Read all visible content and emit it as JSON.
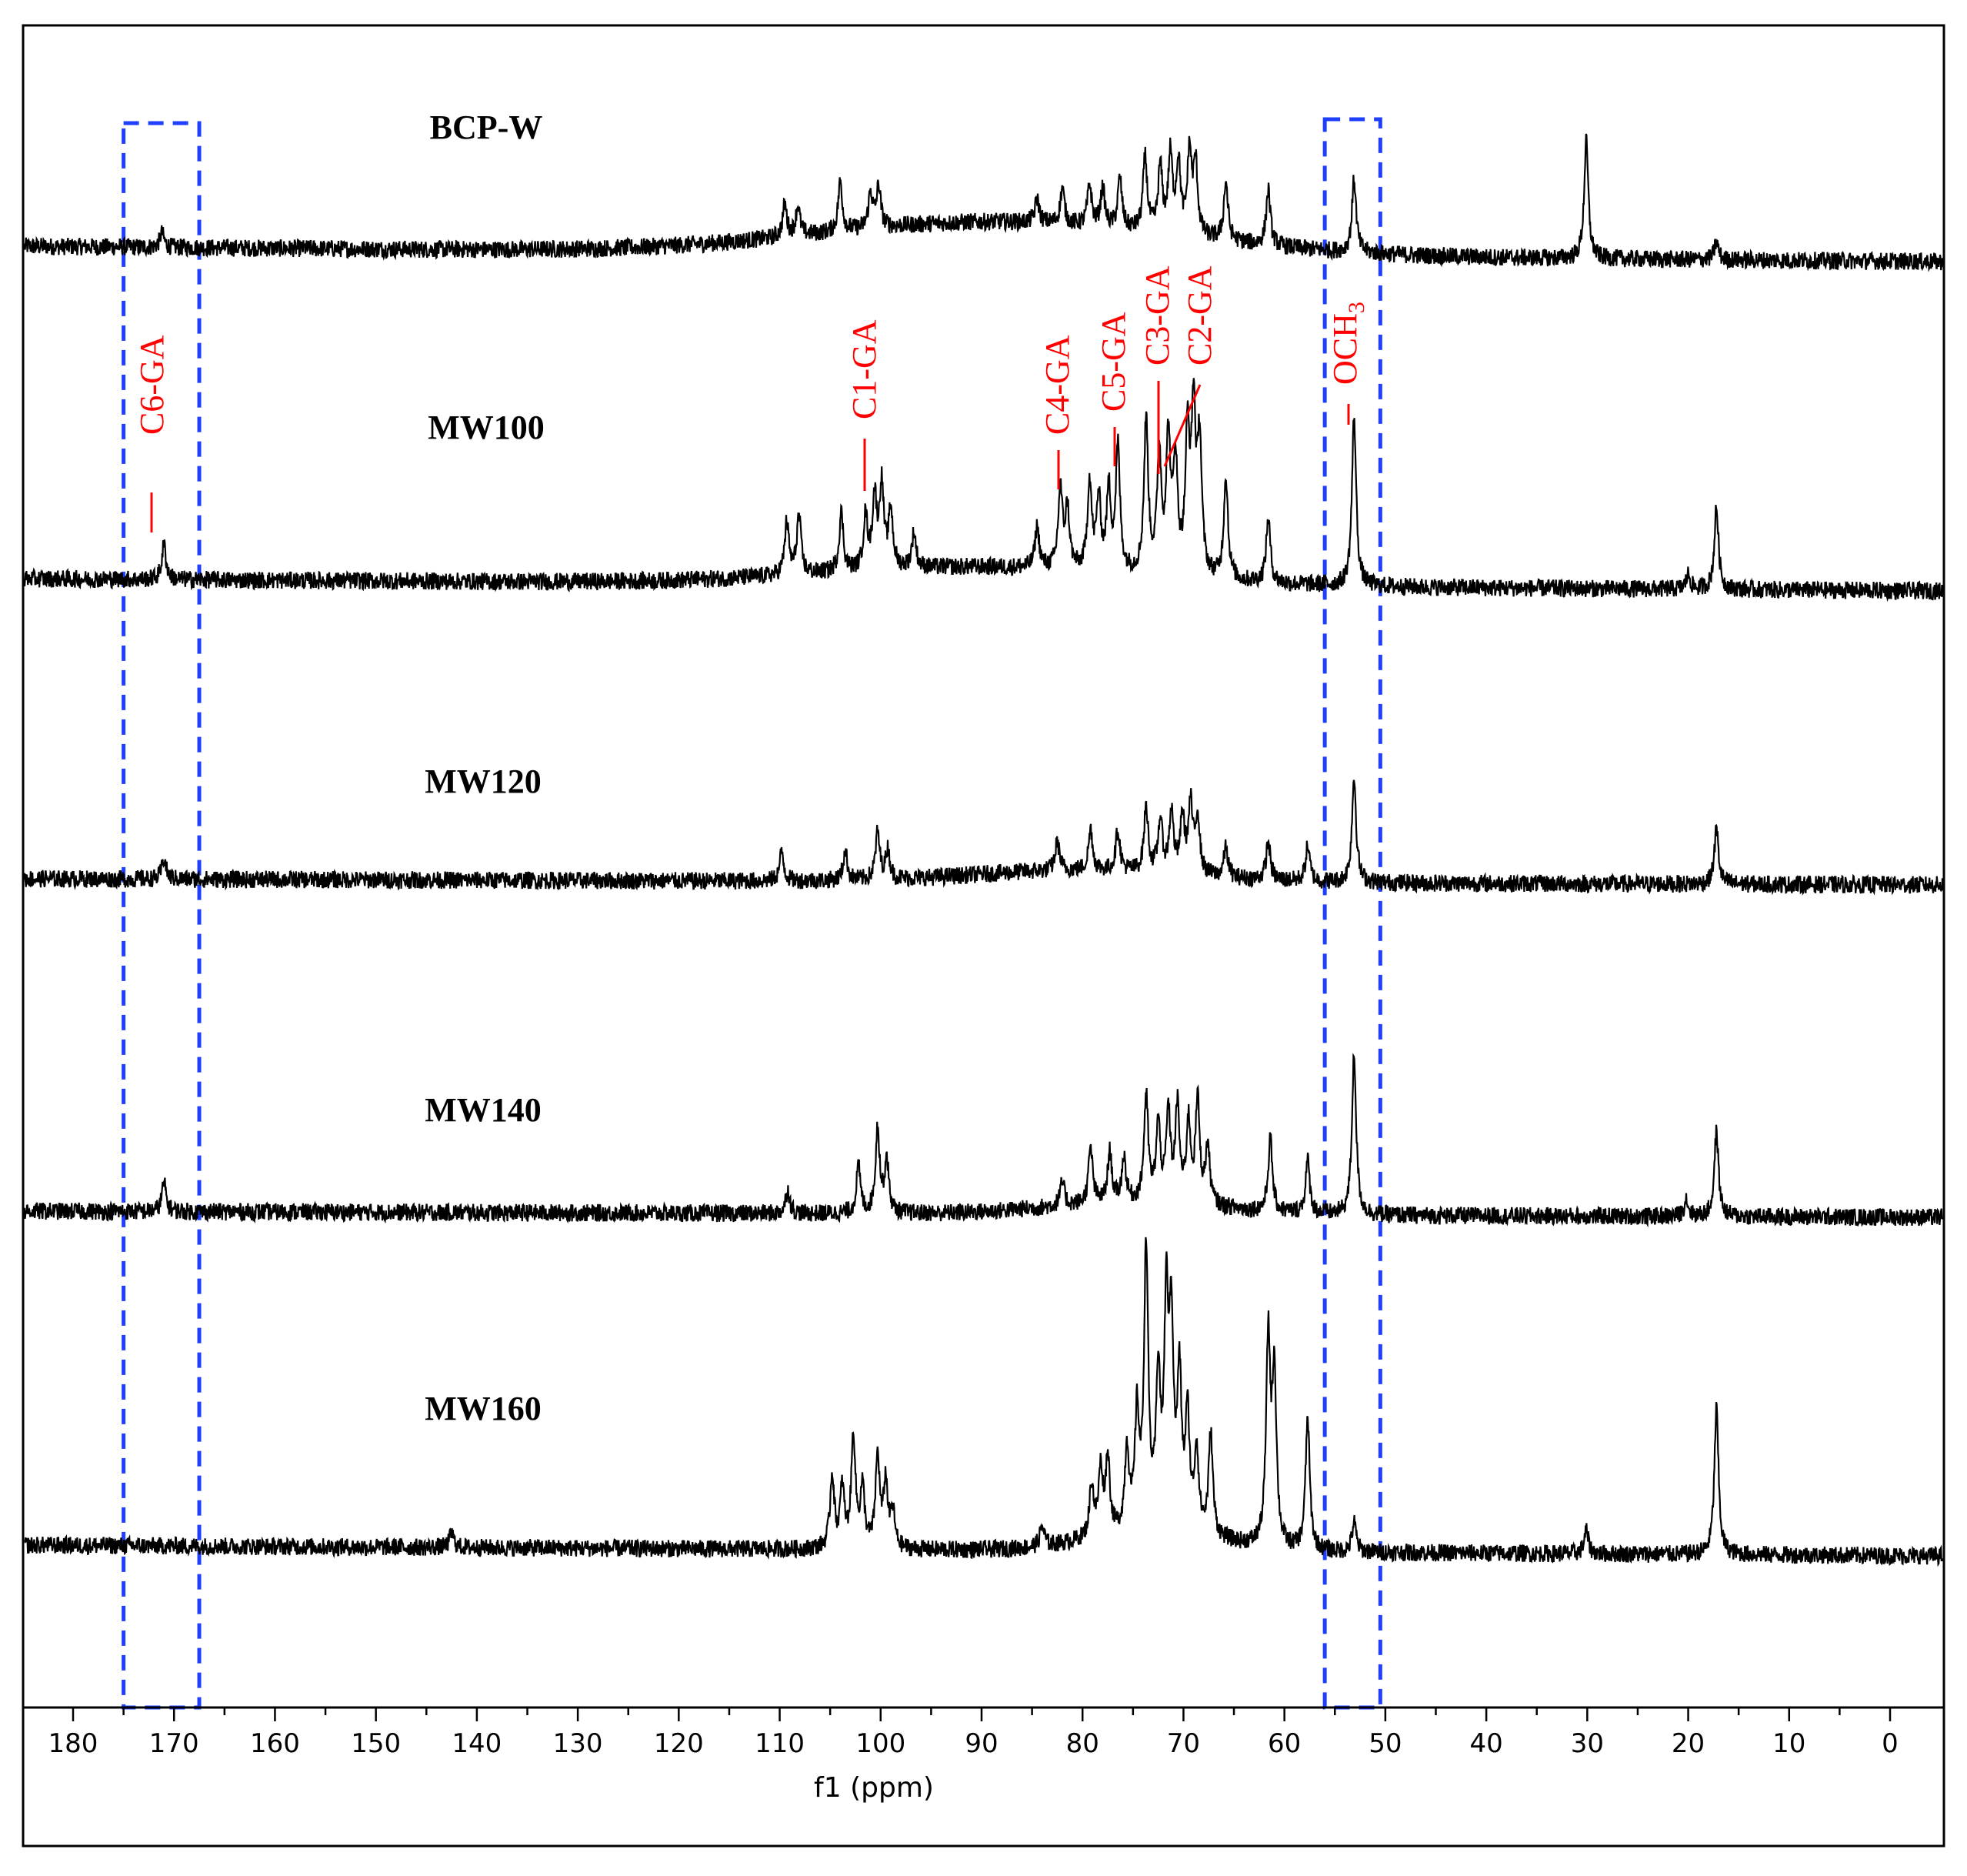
{
  "chart_data": {
    "type": "line",
    "title": "",
    "xlabel": "f1 (ppm)",
    "ylabel": "",
    "xlim": [
      183,
      -5
    ],
    "x_reversed": true,
    "ticks": [
      "180",
      "170",
      "160",
      "150",
      "140",
      "130",
      "120",
      "110",
      "100",
      "90",
      "80",
      "70",
      "60",
      "50",
      "40",
      "30",
      "20",
      "10",
      "0"
    ],
    "grid": false,
    "colors": {
      "spectrum": "#000000",
      "annotation": "#ff0000",
      "box": "#1f3fff",
      "frame": "#000000"
    },
    "highlight_regions": [
      {
        "x_range": [
          175,
          167.5
        ],
        "style": "dashed",
        "color": "#1f3fff"
      },
      {
        "x_range": [
          56,
          50.5
        ],
        "style": "dashed",
        "color": "#1f3fff"
      }
    ],
    "series": [
      {
        "name": "BCP-W",
        "baseline_drift": 0.1,
        "hump_center": 88,
        "hump_width": 25,
        "hump_height": 0.11,
        "peaks": [
          {
            "x": 171.2,
            "h": 0.05
          },
          {
            "x": 109.5,
            "h": 0.11
          },
          {
            "x": 108.2,
            "h": 0.1
          },
          {
            "x": 104,
            "h": 0.17
          },
          {
            "x": 101,
            "h": 0.12
          },
          {
            "x": 100.2,
            "h": 0.14
          },
          {
            "x": 84.5,
            "h": 0.08
          },
          {
            "x": 82,
            "h": 0.12
          },
          {
            "x": 79.3,
            "h": 0.14
          },
          {
            "x": 78,
            "h": 0.13
          },
          {
            "x": 76.3,
            "h": 0.17
          },
          {
            "x": 73.8,
            "h": 0.25
          },
          {
            "x": 72.3,
            "h": 0.22
          },
          {
            "x": 71.3,
            "h": 0.26
          },
          {
            "x": 70.5,
            "h": 0.24
          },
          {
            "x": 69.4,
            "h": 0.28
          },
          {
            "x": 68.8,
            "h": 0.24
          },
          {
            "x": 65.8,
            "h": 0.2
          },
          {
            "x": 61.6,
            "h": 0.19
          },
          {
            "x": 53.1,
            "h": 0.25
          },
          {
            "x": 30.1,
            "h": 0.4
          },
          {
            "x": 17.2,
            "h": 0.06
          }
        ]
      },
      {
        "name": "MW100",
        "baseline_drift": 0.04,
        "hump_center": 90,
        "hump_width": 22,
        "hump_height": 0.06,
        "peaks": [
          {
            "x": 171,
            "h": 0.12
          },
          {
            "x": 109.3,
            "h": 0.18
          },
          {
            "x": 108.1,
            "h": 0.2
          },
          {
            "x": 103.9,
            "h": 0.2
          },
          {
            "x": 101.5,
            "h": 0.18
          },
          {
            "x": 100.6,
            "h": 0.24
          },
          {
            "x": 99.9,
            "h": 0.28
          },
          {
            "x": 99,
            "h": 0.2
          },
          {
            "x": 96.7,
            "h": 0.12
          },
          {
            "x": 84.5,
            "h": 0.14
          },
          {
            "x": 82.2,
            "h": 0.27
          },
          {
            "x": 81.5,
            "h": 0.2
          },
          {
            "x": 79.3,
            "h": 0.3
          },
          {
            "x": 78.4,
            "h": 0.24
          },
          {
            "x": 77.4,
            "h": 0.27
          },
          {
            "x": 76.5,
            "h": 0.42
          },
          {
            "x": 73.7,
            "h": 0.52
          },
          {
            "x": 72.4,
            "h": 0.4
          },
          {
            "x": 71.5,
            "h": 0.45
          },
          {
            "x": 70.8,
            "h": 0.38
          },
          {
            "x": 69.6,
            "h": 0.46
          },
          {
            "x": 69,
            "h": 0.54
          },
          {
            "x": 68.4,
            "h": 0.45
          },
          {
            "x": 65.8,
            "h": 0.35
          },
          {
            "x": 61.6,
            "h": 0.22
          },
          {
            "x": 53.1,
            "h": 0.58
          },
          {
            "x": 20,
            "h": 0.05
          },
          {
            "x": 17.2,
            "h": 0.28
          }
        ]
      },
      {
        "name": "MW120",
        "baseline_drift": 0.01,
        "hump_center": 80,
        "hump_width": 15,
        "hump_height": 0.04,
        "peaks": [
          {
            "x": 171,
            "h": 0.07
          },
          {
            "x": 109.8,
            "h": 0.1
          },
          {
            "x": 103.5,
            "h": 0.1
          },
          {
            "x": 100.3,
            "h": 0.16
          },
          {
            "x": 99.3,
            "h": 0.1
          },
          {
            "x": 82.5,
            "h": 0.1
          },
          {
            "x": 79.2,
            "h": 0.14
          },
          {
            "x": 76.5,
            "h": 0.14
          },
          {
            "x": 73.7,
            "h": 0.22
          },
          {
            "x": 72.3,
            "h": 0.18
          },
          {
            "x": 71.2,
            "h": 0.21
          },
          {
            "x": 70.1,
            "h": 0.19
          },
          {
            "x": 69.3,
            "h": 0.23
          },
          {
            "x": 68.6,
            "h": 0.2
          },
          {
            "x": 65.8,
            "h": 0.1
          },
          {
            "x": 61.6,
            "h": 0.13
          },
          {
            "x": 57.7,
            "h": 0.12
          },
          {
            "x": 53.1,
            "h": 0.36
          },
          {
            "x": 17.2,
            "h": 0.19
          }
        ]
      },
      {
        "name": "MW140",
        "baseline_drift": 0.01,
        "hump_center": 75,
        "hump_width": 12,
        "hump_height": 0.04,
        "peaks": [
          {
            "x": 171,
            "h": 0.1
          },
          {
            "x": 109.2,
            "h": 0.08
          },
          {
            "x": 102.2,
            "h": 0.16
          },
          {
            "x": 100.3,
            "h": 0.29
          },
          {
            "x": 99.4,
            "h": 0.18
          },
          {
            "x": 82,
            "h": 0.08
          },
          {
            "x": 79.2,
            "h": 0.19
          },
          {
            "x": 77.3,
            "h": 0.17
          },
          {
            "x": 75.9,
            "h": 0.15
          },
          {
            "x": 73.7,
            "h": 0.36
          },
          {
            "x": 72.5,
            "h": 0.26
          },
          {
            "x": 71.5,
            "h": 0.3
          },
          {
            "x": 70.6,
            "h": 0.32
          },
          {
            "x": 69.5,
            "h": 0.27
          },
          {
            "x": 68.6,
            "h": 0.35
          },
          {
            "x": 67.6,
            "h": 0.2
          },
          {
            "x": 61.4,
            "h": 0.25
          },
          {
            "x": 57.7,
            "h": 0.18
          },
          {
            "x": 53.1,
            "h": 0.55
          },
          {
            "x": 20.2,
            "h": 0.06
          },
          {
            "x": 17.2,
            "h": 0.29
          }
        ]
      },
      {
        "name": "MW160",
        "baseline_drift": 0.0,
        "hump_center": 73,
        "hump_width": 9,
        "hump_height": 0.06,
        "peaks": [
          {
            "x": 142.5,
            "h": 0.05
          },
          {
            "x": 104.8,
            "h": 0.25
          },
          {
            "x": 103.8,
            "h": 0.2
          },
          {
            "x": 102.7,
            "h": 0.38
          },
          {
            "x": 101.8,
            "h": 0.2
          },
          {
            "x": 100.3,
            "h": 0.31
          },
          {
            "x": 99.5,
            "h": 0.22
          },
          {
            "x": 98.8,
            "h": 0.12
          },
          {
            "x": 84,
            "h": 0.07
          },
          {
            "x": 79.1,
            "h": 0.18
          },
          {
            "x": 78.2,
            "h": 0.22
          },
          {
            "x": 77.5,
            "h": 0.26
          },
          {
            "x": 75.6,
            "h": 0.28
          },
          {
            "x": 74.6,
            "h": 0.38
          },
          {
            "x": 73.7,
            "h": 0.95
          },
          {
            "x": 72.5,
            "h": 0.5
          },
          {
            "x": 71.7,
            "h": 0.72
          },
          {
            "x": 71.2,
            "h": 0.65
          },
          {
            "x": 70.4,
            "h": 0.5
          },
          {
            "x": 69.6,
            "h": 0.38
          },
          {
            "x": 68.7,
            "h": 0.28
          },
          {
            "x": 67.3,
            "h": 0.35
          },
          {
            "x": 61.6,
            "h": 0.7
          },
          {
            "x": 61.0,
            "h": 0.58
          },
          {
            "x": 57.7,
            "h": 0.45
          },
          {
            "x": 53.1,
            "h": 0.1
          },
          {
            "x": 30.1,
            "h": 0.08
          },
          {
            "x": 17.2,
            "h": 0.5
          }
        ]
      }
    ],
    "annotations": [
      {
        "label": "C6-GA",
        "x": 171.0
      },
      {
        "label": "C1-GA",
        "x": 100.4
      },
      {
        "label": "C4-GA",
        "x": 82.0
      },
      {
        "label": "C5-GA",
        "x": 76.5
      },
      {
        "label": "C3-GA",
        "x": 72.0
      },
      {
        "label": "C2-GA",
        "x": 68.8
      },
      {
        "label": "OCH",
        "subscript": "3",
        "x": 53.1
      }
    ]
  }
}
